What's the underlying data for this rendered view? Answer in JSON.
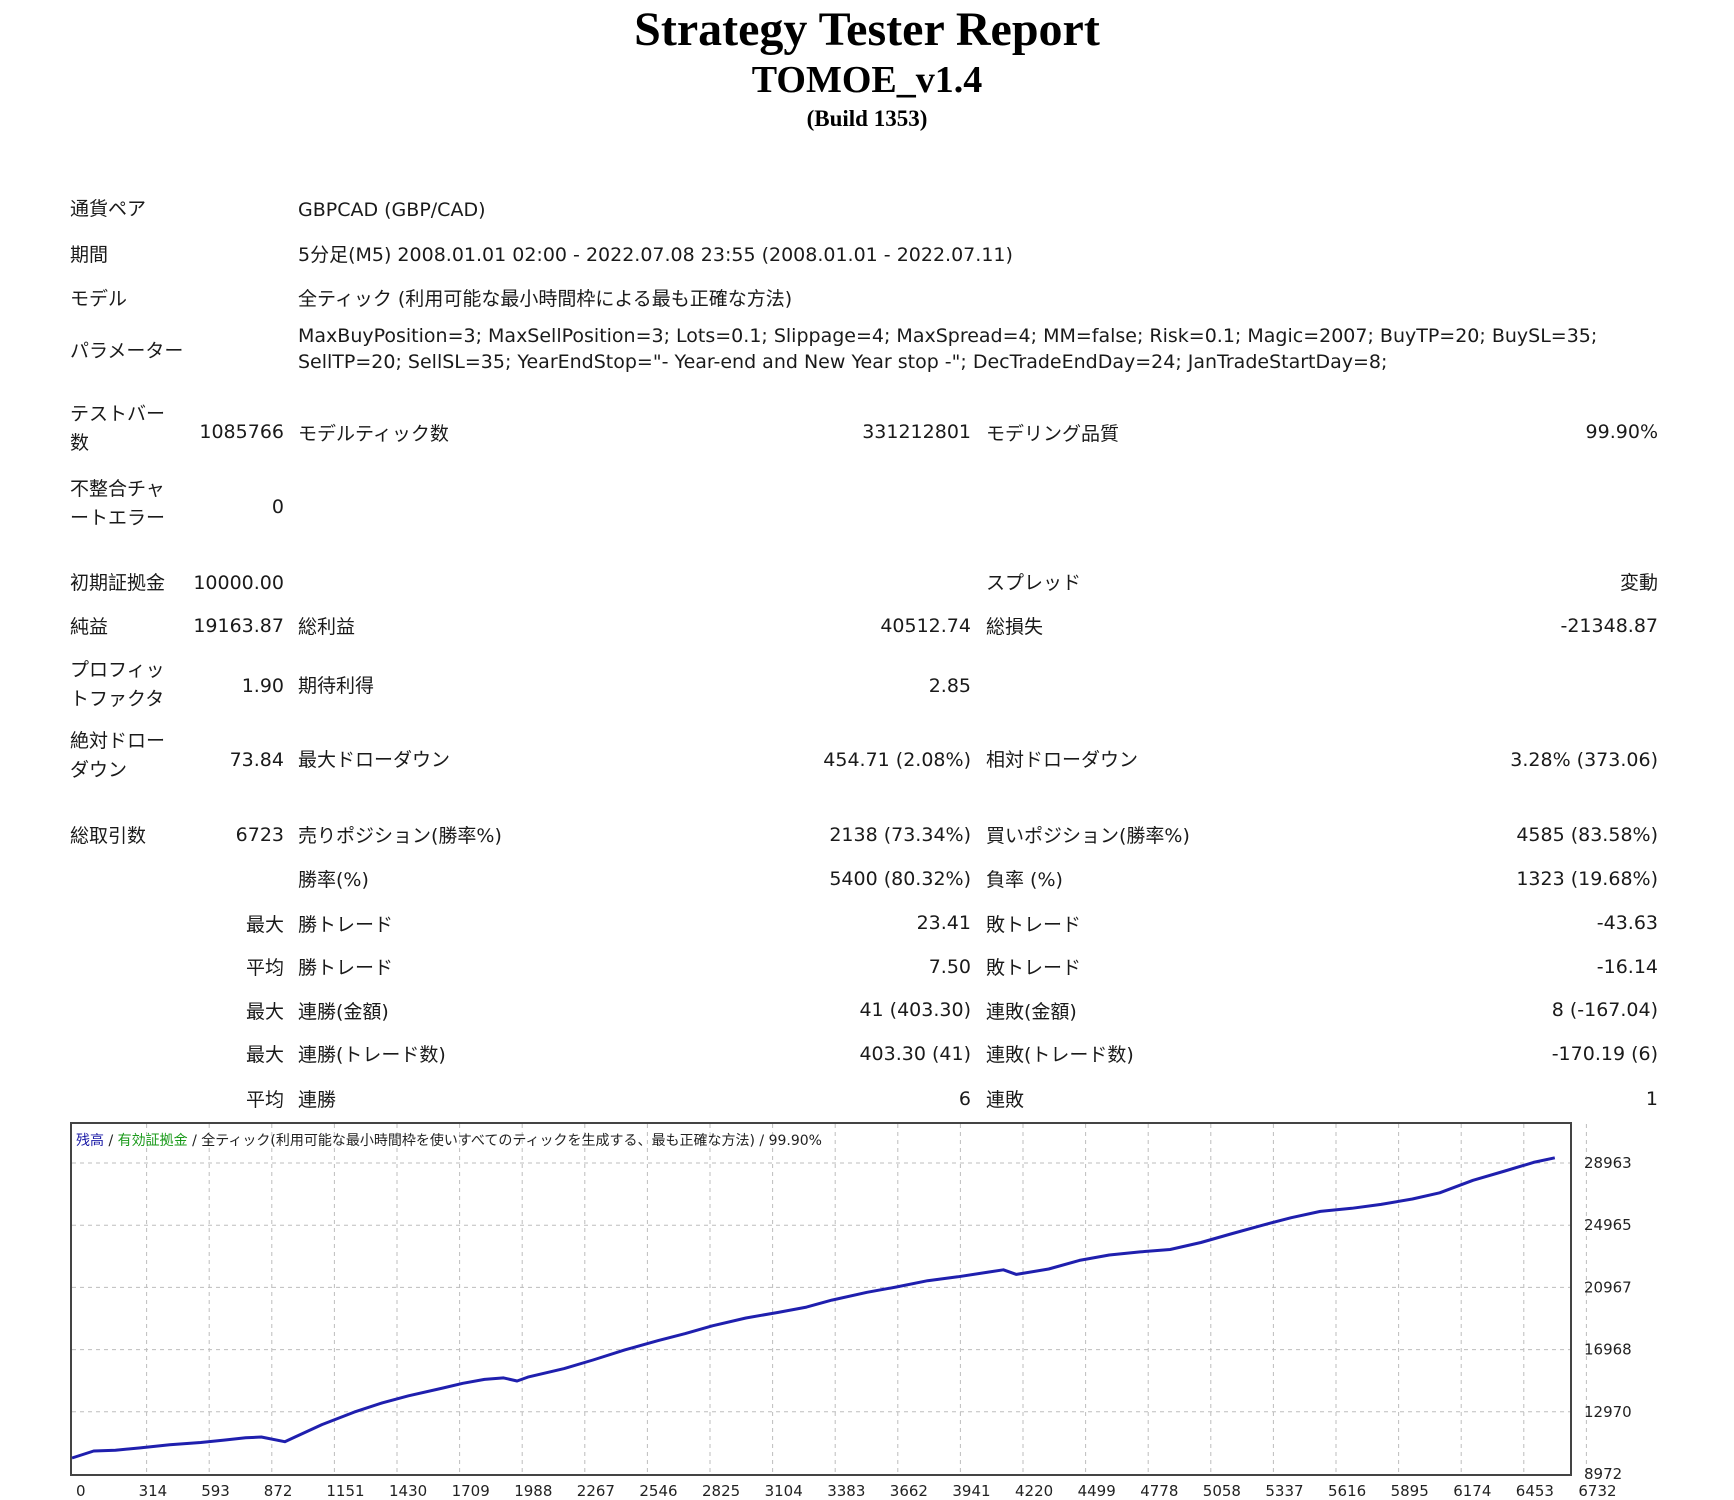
{
  "report": {
    "title": "Strategy Tester Report",
    "ea_name": "TOMOE_v1.4",
    "build": "(Build 1353)"
  },
  "info": {
    "symbol_label": "通貨ペア",
    "symbol_value": "GBPCAD (GBP/CAD)",
    "period_label": "期間",
    "period_value": "5分足(M5) 2008.01.01 02:00 - 2022.07.08 23:55 (2008.01.01 - 2022.07.11)",
    "model_label": "モデル",
    "model_value": "全ティック (利用可能な最小時間枠による最も正確な方法)",
    "params_label": "パラメーター",
    "params_value": "MaxBuyPosition=3; MaxSellPosition=3; Lots=0.1; Slippage=4; MaxSpread=4; MM=false; Risk=0.1; Magic=2007; BuyTP=20; BuySL=35; SellTP=20; SellSL=35; YearEndStop=\"- Year-end and New Year stop -\"; DecTradeEndDay=24; JanTradeStartDay=8;"
  },
  "stats": {
    "bars_label": "テストバー数",
    "bars_value": "1085766",
    "ticks_label": "モデルティック数",
    "ticks_value": "331212801",
    "quality_label": "モデリング品質",
    "quality_value": "99.90%",
    "mismatch_label": "不整合チャートエラー",
    "mismatch_value": "0",
    "deposit_label": "初期証拠金",
    "deposit_value": "10000.00",
    "spread_label": "スプレッド",
    "spread_value": "変動",
    "net_label": "純益",
    "net_value": "19163.87",
    "gross_profit_label": "総利益",
    "gross_profit_value": "40512.74",
    "gross_loss_label": "総損失",
    "gross_loss_value": "-21348.87",
    "pf_label": "プロフィットファクタ",
    "pf_value": "1.90",
    "expected_label": "期待利得",
    "expected_value": "2.85",
    "abs_dd_label": "絶対ドローダウン",
    "abs_dd_value": "73.84",
    "max_dd_label": "最大ドローダウン",
    "max_dd_value": "454.71 (2.08%)",
    "rel_dd_label": "相対ドローダウン",
    "rel_dd_value": "3.28% (373.06)",
    "trades_label": "総取引数",
    "trades_value": "6723",
    "short_label": "売りポジション(勝率%)",
    "short_value": "2138 (73.34%)",
    "long_label": "買いポジション(勝率%)",
    "long_value": "4585 (83.58%)",
    "win_rate_label": "勝率(%)",
    "win_rate_value": "5400 (80.32%)",
    "loss_rate_label": "負率 (%)",
    "loss_rate_value": "1323 (19.68%)",
    "max_label": "最大",
    "avg_label": "平均",
    "win_trade_label": "勝トレード",
    "loss_trade_label": "敗トレード",
    "max_win_value": "23.41",
    "max_loss_value": "-43.63",
    "avg_win_value": "7.50",
    "avg_loss_value": "-16.14",
    "consec_win_amt_label": "連勝(金額)",
    "consec_win_amt_value": "41 (403.30)",
    "consec_loss_amt_label": "連敗(金額)",
    "consec_loss_amt_value": "8 (-167.04)",
    "consec_win_cnt_label": "連勝(トレード数)",
    "consec_win_cnt_value": "403.30 (41)",
    "consec_loss_cnt_label": "連敗(トレード数)",
    "consec_loss_cnt_value": "-170.19 (6)",
    "avg_consec_win_label": "連勝",
    "avg_consec_win_value": "6",
    "avg_consec_loss_label": "連敗",
    "avg_consec_loss_value": "1"
  },
  "chart_legend": {
    "balance": "残高",
    "sep1": " / ",
    "equity": "有効証拠金",
    "sep2": " / ",
    "model": "全ティック(利用可能な最小時間枠を使いすべてのティックを生成する、最も正確な方法)",
    "sep3": " / ",
    "quality": "99.90%",
    "balance_color": "#1a1aa6",
    "equity_color": "#1a9a1a",
    "line_color": "#1f1fae"
  },
  "chart_data": {
    "type": "line",
    "xlabel": "",
    "ylabel": "",
    "x_ticks": [
      "0",
      "314",
      "593",
      "872",
      "1151",
      "1430",
      "1709",
      "1988",
      "2267",
      "2546",
      "2825",
      "3104",
      "3383",
      "3662",
      "3941",
      "4220",
      "4499",
      "4778",
      "5058",
      "5337",
      "5616",
      "5895",
      "6174",
      "6453",
      "6732"
    ],
    "y_ticks": [
      "28963",
      "24965",
      "20967",
      "16968",
      "12970",
      "8972"
    ],
    "ylim": [
      8972,
      30000
    ],
    "xlim": [
      0,
      6900
    ],
    "grid": true,
    "series": [
      {
        "name": "残高",
        "x": [
          0,
          100,
          200,
          314,
          450,
          593,
          700,
          800,
          872,
          980,
          1020,
          1151,
          1300,
          1430,
          1550,
          1709,
          1800,
          1900,
          1988,
          2050,
          2100,
          2267,
          2400,
          2546,
          2700,
          2825,
          2950,
          3104,
          3250,
          3383,
          3500,
          3662,
          3800,
          3941,
          4080,
          4220,
          4290,
          4350,
          4499,
          4640,
          4778,
          4920,
          5058,
          5200,
          5337,
          5480,
          5616,
          5750,
          5895,
          6030,
          6174,
          6300,
          6453,
          6600,
          6732,
          6830
        ],
        "y": [
          10000,
          10450,
          10500,
          10650,
          10850,
          11000,
          11150,
          11300,
          11350,
          11050,
          11300,
          12150,
          12950,
          13550,
          14000,
          14500,
          14800,
          15050,
          15150,
          14950,
          15200,
          15750,
          16300,
          16950,
          17550,
          18000,
          18500,
          19000,
          19350,
          19700,
          20150,
          20650,
          21000,
          21400,
          21650,
          21950,
          22100,
          21800,
          22150,
          22700,
          23050,
          23250,
          23400,
          23850,
          24400,
          24950,
          25450,
          25850,
          26050,
          26300,
          26650,
          27050,
          27850,
          28450,
          29000,
          29300
        ]
      }
    ]
  }
}
